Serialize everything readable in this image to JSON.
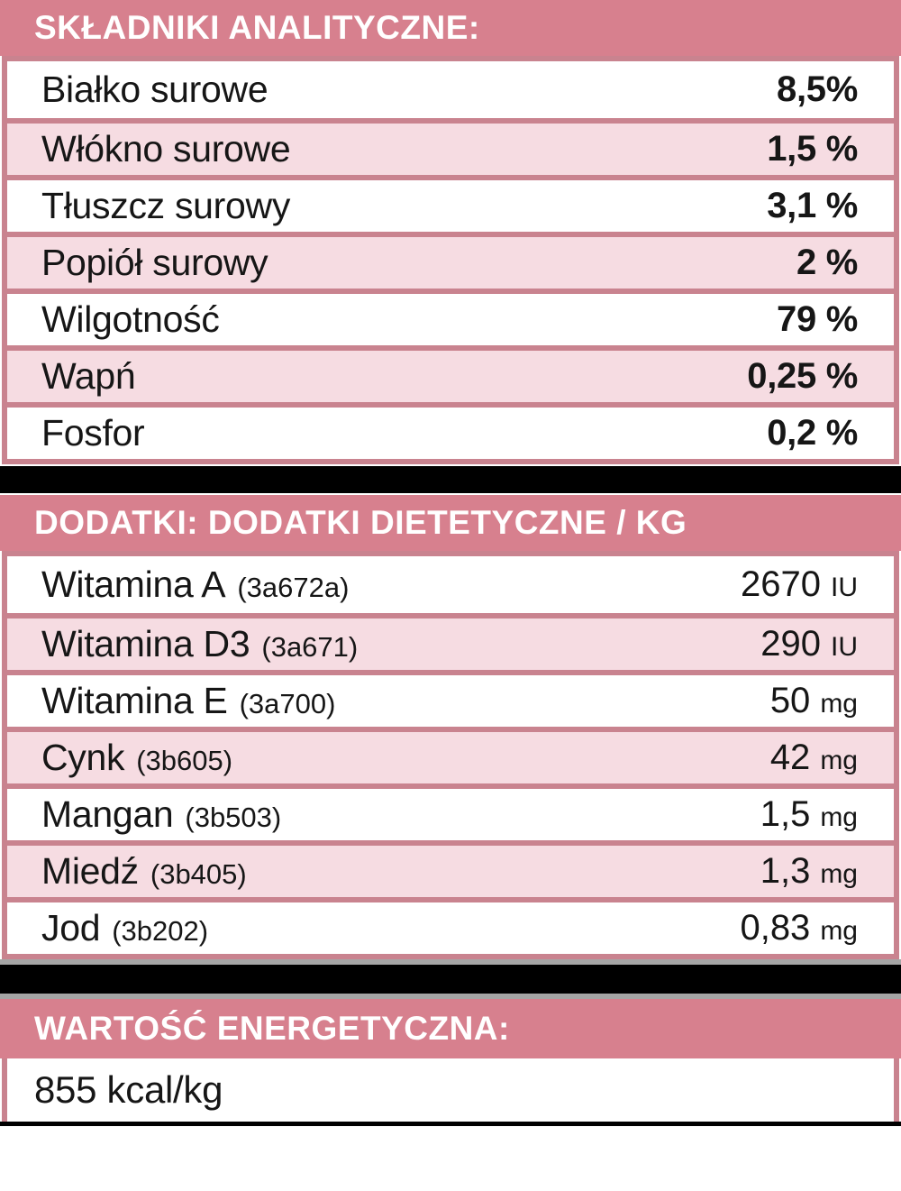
{
  "colors": {
    "header_pink": "#d7808e",
    "row_pink": "#f6dce2",
    "border_pink": "#c9838f",
    "separator_gray": "#a5a5a5",
    "separator_black": "#000000",
    "text": "#161616"
  },
  "analytical": {
    "title": "SKŁADNIKI ANALITYCZNE:",
    "rows": [
      {
        "label": "Białko surowe",
        "value": "8,5%"
      },
      {
        "label": "Włókno surowe",
        "value": "1,5 %"
      },
      {
        "label": "Tłuszcz surowy",
        "value": "3,1 %"
      },
      {
        "label": "Popiół surowy",
        "value": "2 %"
      },
      {
        "label": "Wilgotność",
        "value": "79 %"
      },
      {
        "label": "Wapń",
        "value": "0,25 %"
      },
      {
        "label": "Fosfor",
        "value": "0,2 %"
      }
    ]
  },
  "additives": {
    "title": "DODATKI: DODATKI DIETETYCZNE / KG",
    "rows": [
      {
        "label": "Witamina A",
        "code": "(3a672a)",
        "num": "2670",
        "unit": "IU"
      },
      {
        "label": "Witamina D3",
        "code": "(3a671)",
        "num": "290",
        "unit": "IU"
      },
      {
        "label": "Witamina E",
        "code": "(3a700)",
        "num": "50",
        "unit": "mg"
      },
      {
        "label": "Cynk",
        "code": "(3b605)",
        "num": "42",
        "unit": "mg"
      },
      {
        "label": "Mangan",
        "code": "(3b503)",
        "num": "1,5",
        "unit": "mg"
      },
      {
        "label": "Miedź",
        "code": "(3b405)",
        "num": "1,3",
        "unit": "mg"
      },
      {
        "label": "Jod",
        "code": "(3b202)",
        "num": "0,83",
        "unit": "mg"
      }
    ]
  },
  "energy": {
    "title": "WARTOŚĆ ENERGETYCZNA:",
    "value": "855 kcal/kg"
  }
}
